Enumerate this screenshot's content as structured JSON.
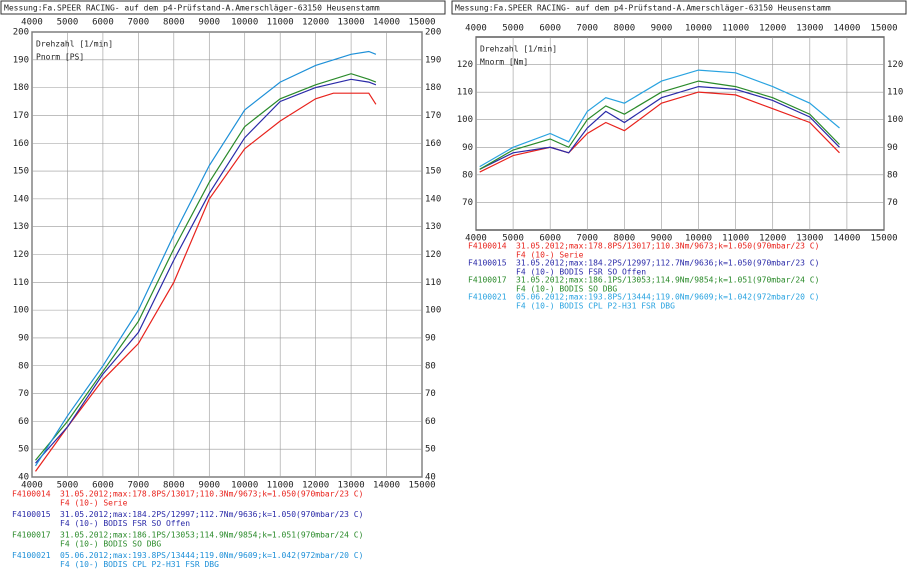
{
  "chart_data": [
    {
      "type": "line",
      "title": "Messung:Fa.SPEER RACING- auf dem p4-Prüfstand-A.Amerschläger-63150 Heusenstamm",
      "xlabel": "Drehzahl [1/min]",
      "ylabel": "Pnorm [PS]",
      "xlim": [
        4000,
        15000
      ],
      "xticks": [
        4000,
        5000,
        6000,
        7000,
        8000,
        9000,
        10000,
        11000,
        12000,
        13000,
        14000,
        15000
      ],
      "ylim": [
        40,
        200
      ],
      "yticks": [
        40,
        50,
        60,
        70,
        80,
        90,
        100,
        110,
        120,
        130,
        140,
        150,
        160,
        170,
        180,
        190,
        200
      ],
      "grid": true,
      "series": [
        {
          "name": "F4100014",
          "info": "31.05.2012;max:178.8PS/13017;110.3Nm/9673;k=1.050(970mbar/23 C)",
          "description": "F4 (10-) Serie",
          "color": "#e8221c",
          "x": [
            4100,
            5000,
            6000,
            7000,
            8000,
            9000,
            10000,
            11000,
            12000,
            12500,
            13000,
            13500,
            13700
          ],
          "values": [
            42,
            58,
            75,
            88,
            110,
            140,
            158,
            168,
            176,
            178,
            178,
            178,
            174
          ]
        },
        {
          "name": "F4100015",
          "info": "31.05.2012;max:184.2PS/12997;112.7Nm/9636;k=1.050(970mbar/23 C)",
          "description": "F4 (10-) BODIS FSR SO Offen",
          "color": "#2a2aa8",
          "x": [
            4100,
            5000,
            6000,
            7000,
            8000,
            9000,
            10000,
            11000,
            12000,
            13000,
            13500,
            13700
          ],
          "values": [
            45,
            58,
            77,
            92,
            118,
            142,
            162,
            175,
            180,
            183,
            182,
            181
          ]
        },
        {
          "name": "F4100017",
          "info": "31.05.2012;max:186.1PS/13053;114.9Nm/9854;k=1.051(970mbar/24 C)",
          "description": "F4 (10-) BODIS SO DBG",
          "color": "#2a8a2a",
          "x": [
            4100,
            5000,
            6000,
            7000,
            8000,
            9000,
            10000,
            11000,
            12000,
            13000,
            13500,
            13700
          ],
          "values": [
            46,
            60,
            78,
            96,
            122,
            146,
            166,
            176,
            181,
            185,
            183,
            182
          ]
        },
        {
          "name": "F4100021",
          "info": "05.06.2012;max:193.8PS/13444;119.0Nm/9609;k=1.042(972mbar/20 C)",
          "description": "F4 (10-) BODIS CPL P2-H31 FSR DBG",
          "color": "#1e90d8",
          "x": [
            4100,
            5000,
            6000,
            7000,
            8000,
            9000,
            10000,
            11000,
            12000,
            13000,
            13500,
            13700
          ],
          "values": [
            44,
            62,
            80,
            100,
            127,
            152,
            172,
            182,
            188,
            192,
            193,
            192
          ]
        }
      ]
    },
    {
      "type": "line",
      "title": "Messung:Fa.SPEER RACING- auf dem p4-Prüfstand-A.Amerschläger-63150 Heusenstamm",
      "xlabel": "Drehzahl [1/min]",
      "ylabel": "Mnorm [Nm]",
      "xlim": [
        4000,
        15000
      ],
      "xticks": [
        4000,
        5000,
        6000,
        7000,
        8000,
        9000,
        10000,
        11000,
        12000,
        13000,
        14000,
        15000
      ],
      "ylim": [
        60,
        130
      ],
      "yticks": [
        70,
        80,
        90,
        100,
        110,
        120
      ],
      "grid": true,
      "series": [
        {
          "name": "F4100014",
          "info": "31.05.2012;max:178.8PS/13017;110.3Nm/9673;k=1.050(970mbar/23 C)",
          "description": "F4 (10-) Serie",
          "color": "#e8221c",
          "x": [
            4100,
            5000,
            6000,
            6500,
            7000,
            7500,
            8000,
            9000,
            10000,
            11000,
            12000,
            13000,
            13800
          ],
          "values": [
            81,
            87,
            90,
            88,
            95,
            99,
            96,
            106,
            110,
            109,
            104,
            99,
            88
          ]
        },
        {
          "name": "F4100015",
          "info": "31.05.2012;max:184.2PS/12997;112.7Nm/9636;k=1.050(970mbar/23 C)",
          "description": "F4 (10-) BODIS FSR SO Offen",
          "color": "#2a2aa8",
          "x": [
            4100,
            5000,
            6000,
            6500,
            7000,
            7500,
            8000,
            9000,
            10000,
            11000,
            12000,
            13000,
            13800
          ],
          "values": [
            82,
            88,
            90,
            88,
            97,
            103,
            99,
            108,
            112,
            111,
            107,
            101,
            90
          ]
        },
        {
          "name": "F4100017",
          "info": "31.05.2012;max:186.1PS/13053;114.9Nm/9854;k=1.051(970mbar/24 C)",
          "description": "F4 (10-) BODIS SO DBG",
          "color": "#2a8a2a",
          "x": [
            4100,
            5000,
            6000,
            6500,
            7000,
            7500,
            8000,
            9000,
            10000,
            11000,
            12000,
            13000,
            13800
          ],
          "values": [
            82,
            89,
            93,
            90,
            100,
            105,
            102,
            110,
            114,
            112,
            108,
            102,
            91
          ]
        },
        {
          "name": "F4100021",
          "info": "05.06.2012;max:193.8PS/13444;119.0Nm/9609;k=1.042(972mbar/20 C)",
          "description": "F4 (10-) BODIS CPL P2-H31 FSR DBG",
          "color": "#29a3e0",
          "x": [
            4100,
            5000,
            6000,
            6500,
            7000,
            7500,
            8000,
            9000,
            10000,
            11000,
            12000,
            13000,
            13800
          ],
          "values": [
            83,
            90,
            95,
            92,
            103,
            108,
            106,
            114,
            118,
            117,
            112,
            106,
            97
          ]
        }
      ]
    }
  ]
}
